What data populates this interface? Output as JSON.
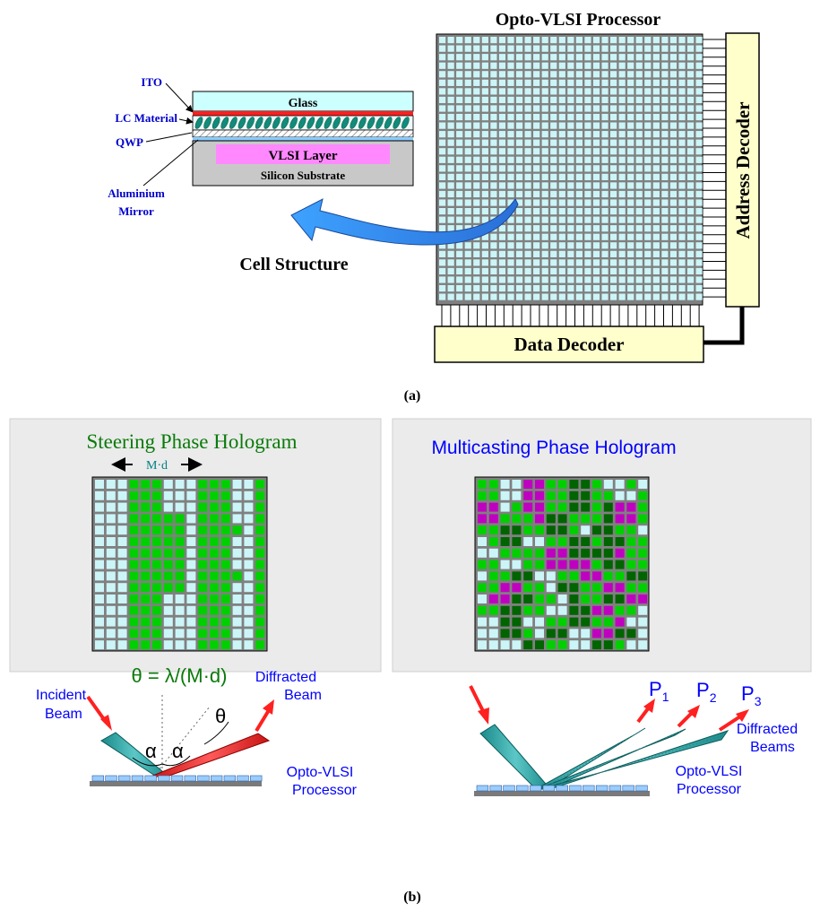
{
  "part_a": {
    "processor_title": "Opto-VLSI Processor",
    "address_decoder": "Address Decoder",
    "data_decoder": "Data Decoder",
    "cell_structure_title": "Cell Structure",
    "layers": {
      "glass": "Glass",
      "vlsi": "VLSI Layer",
      "substrate": "Silicon Substrate"
    },
    "layer_labels": {
      "ito": "ITO",
      "lc": "LC Material",
      "qwp": "QWP",
      "mirror_line1": "Aluminium",
      "mirror_line2": "Mirror"
    },
    "caption": "(a)"
  },
  "part_b": {
    "caption": "(b)",
    "steering": {
      "title": "Steering Phase Hologram",
      "period_label": "M·d",
      "equation": "θ = λ/(M·d)",
      "incident_line1": "Incident",
      "incident_line2": "Beam",
      "diffracted_line1": "Diffracted",
      "diffracted_line2": "Beam",
      "alpha": "α",
      "theta": "θ",
      "processor_line1": "Opto-VLSI",
      "processor_line2": "Processor"
    },
    "multicasting": {
      "title": "Multicasting Phase Hologram",
      "p1": "P",
      "p1_sub": "1",
      "p2": "P",
      "p2_sub": "2",
      "p3": "P",
      "p3_sub": "3",
      "diffracted_line1": "Diffracted",
      "diffracted_line2": "Beams",
      "processor_line1": "Opto-VLSI",
      "processor_line2": "Processor"
    }
  },
  "colors": {
    "pixel_light": "#ccf5f8",
    "pixel_green": "#00d000",
    "pixel_dark_green": "#006400",
    "pixel_magenta": "#c000c0",
    "decoder_fill": "#ffffcc",
    "blue_text": "#0000ff",
    "green_title": "#0a7a0a",
    "beam_teal": "#2fa6a6",
    "beam_red": "#e02020",
    "arrow_red": "#ff2020",
    "panel_bg": "#ebebeb"
  }
}
